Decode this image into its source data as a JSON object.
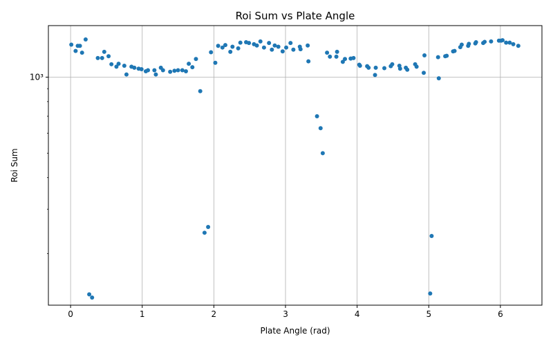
{
  "chart_data": {
    "type": "scatter",
    "title": "Roi Sum vs Plate Angle",
    "xlabel": "Plate Angle (rad)",
    "ylabel": "Roi Sum",
    "x_scale": "linear",
    "y_scale": "log",
    "xlim": [
      -0.31,
      6.58
    ],
    "ylim": [
      125,
      1600
    ],
    "grid": true,
    "marker_color": "#1f77b4",
    "xticks": [
      0,
      1,
      2,
      3,
      4,
      5,
      6
    ],
    "xtick_labels": [
      "0",
      "1",
      "2",
      "3",
      "4",
      "5",
      "6"
    ],
    "yticks": [
      1000
    ],
    "ytick_labels": [
      "10³"
    ],
    "points": [
      {
        "x": 0.01,
        "y": 1345
      },
      {
        "x": 0.07,
        "y": 1270
      },
      {
        "x": 0.1,
        "y": 1330
      },
      {
        "x": 0.13,
        "y": 1330
      },
      {
        "x": 0.16,
        "y": 1250
      },
      {
        "x": 0.21,
        "y": 1410
      },
      {
        "x": 0.26,
        "y": 138
      },
      {
        "x": 0.3,
        "y": 134
      },
      {
        "x": 0.38,
        "y": 1190
      },
      {
        "x": 0.44,
        "y": 1190
      },
      {
        "x": 0.47,
        "y": 1260
      },
      {
        "x": 0.53,
        "y": 1210
      },
      {
        "x": 0.57,
        "y": 1125
      },
      {
        "x": 0.64,
        "y": 1100
      },
      {
        "x": 0.67,
        "y": 1130
      },
      {
        "x": 0.75,
        "y": 1110
      },
      {
        "x": 0.78,
        "y": 1025
      },
      {
        "x": 0.85,
        "y": 1100
      },
      {
        "x": 0.89,
        "y": 1090
      },
      {
        "x": 0.95,
        "y": 1080
      },
      {
        "x": 0.99,
        "y": 1075
      },
      {
        "x": 1.05,
        "y": 1055
      },
      {
        "x": 1.08,
        "y": 1065
      },
      {
        "x": 1.17,
        "y": 1065
      },
      {
        "x": 1.19,
        "y": 1025
      },
      {
        "x": 1.26,
        "y": 1090
      },
      {
        "x": 1.29,
        "y": 1065
      },
      {
        "x": 1.39,
        "y": 1050
      },
      {
        "x": 1.45,
        "y": 1060
      },
      {
        "x": 1.5,
        "y": 1065
      },
      {
        "x": 1.56,
        "y": 1065
      },
      {
        "x": 1.61,
        "y": 1055
      },
      {
        "x": 1.65,
        "y": 1130
      },
      {
        "x": 1.7,
        "y": 1095
      },
      {
        "x": 1.75,
        "y": 1180
      },
      {
        "x": 1.81,
        "y": 880
      },
      {
        "x": 1.87,
        "y": 242
      },
      {
        "x": 1.92,
        "y": 255
      },
      {
        "x": 1.96,
        "y": 1255
      },
      {
        "x": 2.02,
        "y": 1140
      },
      {
        "x": 2.06,
        "y": 1330
      },
      {
        "x": 2.12,
        "y": 1310
      },
      {
        "x": 2.16,
        "y": 1340
      },
      {
        "x": 2.23,
        "y": 1260
      },
      {
        "x": 2.26,
        "y": 1320
      },
      {
        "x": 2.34,
        "y": 1300
      },
      {
        "x": 2.37,
        "y": 1370
      },
      {
        "x": 2.45,
        "y": 1375
      },
      {
        "x": 2.49,
        "y": 1365
      },
      {
        "x": 2.56,
        "y": 1350
      },
      {
        "x": 2.6,
        "y": 1335
      },
      {
        "x": 2.65,
        "y": 1385
      },
      {
        "x": 2.7,
        "y": 1310
      },
      {
        "x": 2.77,
        "y": 1365
      },
      {
        "x": 2.81,
        "y": 1285
      },
      {
        "x": 2.85,
        "y": 1335
      },
      {
        "x": 2.9,
        "y": 1320
      },
      {
        "x": 2.96,
        "y": 1265
      },
      {
        "x": 3.01,
        "y": 1310
      },
      {
        "x": 3.07,
        "y": 1365
      },
      {
        "x": 3.11,
        "y": 1285
      },
      {
        "x": 3.2,
        "y": 1320
      },
      {
        "x": 3.21,
        "y": 1290
      },
      {
        "x": 3.31,
        "y": 1335
      },
      {
        "x": 3.32,
        "y": 1155
      },
      {
        "x": 3.44,
        "y": 700
      },
      {
        "x": 3.49,
        "y": 628
      },
      {
        "x": 3.52,
        "y": 500
      },
      {
        "x": 3.58,
        "y": 1250
      },
      {
        "x": 3.62,
        "y": 1205
      },
      {
        "x": 3.71,
        "y": 1205
      },
      {
        "x": 3.72,
        "y": 1260
      },
      {
        "x": 3.8,
        "y": 1150
      },
      {
        "x": 3.83,
        "y": 1180
      },
      {
        "x": 3.91,
        "y": 1185
      },
      {
        "x": 3.95,
        "y": 1190
      },
      {
        "x": 4.03,
        "y": 1120
      },
      {
        "x": 4.04,
        "y": 1110
      },
      {
        "x": 4.14,
        "y": 1105
      },
      {
        "x": 4.16,
        "y": 1090
      },
      {
        "x": 4.25,
        "y": 1020
      },
      {
        "x": 4.26,
        "y": 1090
      },
      {
        "x": 4.38,
        "y": 1085
      },
      {
        "x": 4.47,
        "y": 1105
      },
      {
        "x": 4.49,
        "y": 1125
      },
      {
        "x": 4.59,
        "y": 1110
      },
      {
        "x": 4.6,
        "y": 1080
      },
      {
        "x": 4.68,
        "y": 1090
      },
      {
        "x": 4.7,
        "y": 1070
      },
      {
        "x": 4.81,
        "y": 1125
      },
      {
        "x": 4.83,
        "y": 1100
      },
      {
        "x": 4.93,
        "y": 1040
      },
      {
        "x": 4.94,
        "y": 1220
      },
      {
        "x": 5.02,
        "y": 139
      },
      {
        "x": 5.04,
        "y": 235
      },
      {
        "x": 5.13,
        "y": 1200
      },
      {
        "x": 5.14,
        "y": 990
      },
      {
        "x": 5.23,
        "y": 1210
      },
      {
        "x": 5.25,
        "y": 1215
      },
      {
        "x": 5.34,
        "y": 1265
      },
      {
        "x": 5.36,
        "y": 1270
      },
      {
        "x": 5.44,
        "y": 1315
      },
      {
        "x": 5.46,
        "y": 1345
      },
      {
        "x": 5.55,
        "y": 1330
      },
      {
        "x": 5.56,
        "y": 1355
      },
      {
        "x": 5.65,
        "y": 1360
      },
      {
        "x": 5.66,
        "y": 1375
      },
      {
        "x": 5.76,
        "y": 1365
      },
      {
        "x": 5.78,
        "y": 1380
      },
      {
        "x": 5.87,
        "y": 1385
      },
      {
        "x": 5.98,
        "y": 1395
      },
      {
        "x": 6.01,
        "y": 1395
      },
      {
        "x": 6.03,
        "y": 1400
      },
      {
        "x": 6.08,
        "y": 1370
      },
      {
        "x": 6.13,
        "y": 1370
      },
      {
        "x": 6.18,
        "y": 1350
      },
      {
        "x": 6.25,
        "y": 1330
      }
    ]
  }
}
